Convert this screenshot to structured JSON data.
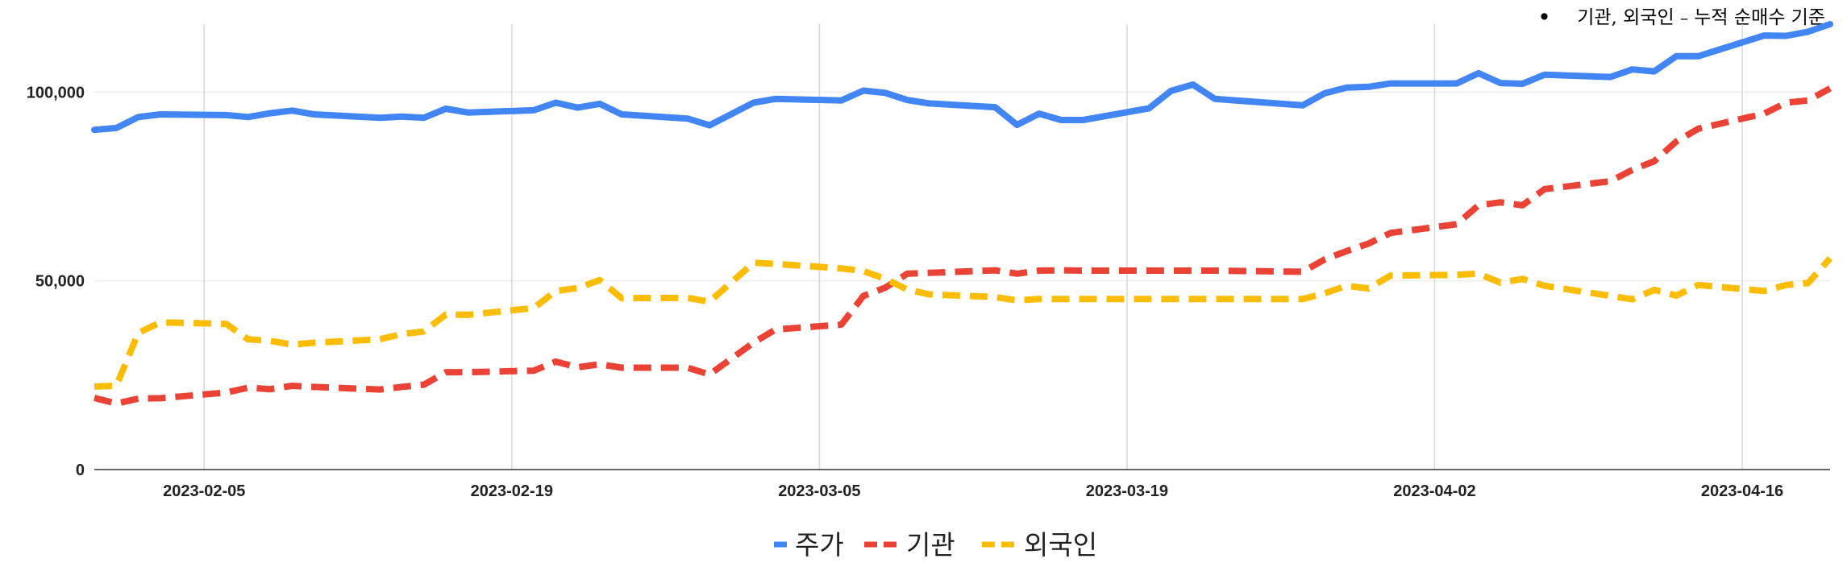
{
  "note": {
    "bullet": "•",
    "main": "기관, 외국인",
    "dash": "–",
    "rest": "누적 순매수 기준"
  },
  "chart_data": {
    "type": "line",
    "x_ticks": [
      "2023-02-05",
      "2023-02-19",
      "2023-03-05",
      "2023-03-19",
      "2023-04-02",
      "2023-04-16"
    ],
    "y_ticks": [
      0,
      50000,
      100000
    ],
    "y_tick_labels": [
      "0",
      "50,000",
      "100,000"
    ],
    "xlim": [
      "2023-01-31",
      "2023-04-20"
    ],
    "ylim": [
      0,
      118000
    ],
    "grid": true,
    "legend_position": "bottom",
    "series": [
      {
        "name": "주가",
        "color": "#4285F4",
        "style": "solid",
        "points": [
          [
            "2023-01-31",
            90000
          ],
          [
            "2023-02-01",
            90500
          ],
          [
            "2023-02-02",
            93400
          ],
          [
            "2023-02-03",
            94100
          ],
          [
            "2023-02-06",
            93900
          ],
          [
            "2023-02-07",
            93400
          ],
          [
            "2023-02-08",
            94400
          ],
          [
            "2023-02-09",
            95100
          ],
          [
            "2023-02-10",
            94100
          ],
          [
            "2023-02-13",
            93200
          ],
          [
            "2023-02-14",
            93500
          ],
          [
            "2023-02-15",
            93200
          ],
          [
            "2023-02-16",
            95600
          ],
          [
            "2023-02-17",
            94600
          ],
          [
            "2023-02-20",
            95200
          ],
          [
            "2023-02-21",
            97200
          ],
          [
            "2023-02-22",
            95900
          ],
          [
            "2023-02-23",
            96900
          ],
          [
            "2023-02-24",
            94100
          ],
          [
            "2023-02-27",
            93000
          ],
          [
            "2023-02-28",
            91200
          ],
          [
            "2023-03-02",
            97200
          ],
          [
            "2023-03-03",
            98200
          ],
          [
            "2023-03-06",
            97800
          ],
          [
            "2023-03-07",
            100400
          ],
          [
            "2023-03-08",
            99800
          ],
          [
            "2023-03-09",
            97900
          ],
          [
            "2023-03-10",
            97000
          ],
          [
            "2023-03-13",
            96000
          ],
          [
            "2023-03-14",
            91300
          ],
          [
            "2023-03-15",
            94300
          ],
          [
            "2023-03-16",
            92600
          ],
          [
            "2023-03-17",
            92600
          ],
          [
            "2023-03-20",
            95700
          ],
          [
            "2023-03-21",
            100300
          ],
          [
            "2023-03-22",
            102000
          ],
          [
            "2023-03-23",
            98200
          ],
          [
            "2023-03-27",
            96500
          ],
          [
            "2023-03-28",
            99700
          ],
          [
            "2023-03-29",
            101200
          ],
          [
            "2023-03-30",
            101400
          ],
          [
            "2023-03-31",
            102300
          ],
          [
            "2023-04-03",
            102300
          ],
          [
            "2023-04-04",
            105000
          ],
          [
            "2023-04-05",
            102400
          ],
          [
            "2023-04-06",
            102200
          ],
          [
            "2023-04-07",
            104600
          ],
          [
            "2023-04-10",
            104000
          ],
          [
            "2023-04-11",
            106000
          ],
          [
            "2023-04-12",
            105500
          ],
          [
            "2023-04-13",
            109500
          ],
          [
            "2023-04-14",
            109500
          ],
          [
            "2023-04-17",
            115000
          ],
          [
            "2023-04-18",
            114900
          ],
          [
            "2023-04-19",
            116000
          ],
          [
            "2023-04-20",
            118000
          ]
        ]
      },
      {
        "name": "기관",
        "color": "#EA4335",
        "style": "dashed",
        "points": [
          [
            "2023-01-31",
            19000
          ],
          [
            "2023-02-01",
            17500
          ],
          [
            "2023-02-02",
            18800
          ],
          [
            "2023-02-03",
            18900
          ],
          [
            "2023-02-06",
            20400
          ],
          [
            "2023-02-07",
            21700
          ],
          [
            "2023-02-08",
            21300
          ],
          [
            "2023-02-09",
            22200
          ],
          [
            "2023-02-10",
            21900
          ],
          [
            "2023-02-13",
            21200
          ],
          [
            "2023-02-14",
            21900
          ],
          [
            "2023-02-15",
            22500
          ],
          [
            "2023-02-16",
            25800
          ],
          [
            "2023-02-17",
            25800
          ],
          [
            "2023-02-20",
            26200
          ],
          [
            "2023-02-21",
            28600
          ],
          [
            "2023-02-22",
            27100
          ],
          [
            "2023-02-23",
            27900
          ],
          [
            "2023-02-24",
            27000
          ],
          [
            "2023-02-27",
            27000
          ],
          [
            "2023-02-28",
            25200
          ],
          [
            "2023-03-02",
            33600
          ],
          [
            "2023-03-03",
            37100
          ],
          [
            "2023-03-06",
            38400
          ],
          [
            "2023-03-07",
            46000
          ],
          [
            "2023-03-08",
            48200
          ],
          [
            "2023-03-09",
            51900
          ],
          [
            "2023-03-10",
            52100
          ],
          [
            "2023-03-13",
            52800
          ],
          [
            "2023-03-14",
            51900
          ],
          [
            "2023-03-15",
            52700
          ],
          [
            "2023-03-16",
            52800
          ],
          [
            "2023-03-17",
            52700
          ],
          [
            "2023-03-20",
            52700
          ],
          [
            "2023-03-21",
            52700
          ],
          [
            "2023-03-22",
            52700
          ],
          [
            "2023-03-23",
            52700
          ],
          [
            "2023-03-27",
            52400
          ],
          [
            "2023-03-28",
            55700
          ],
          [
            "2023-03-29",
            57900
          ],
          [
            "2023-03-30",
            59900
          ],
          [
            "2023-03-31",
            62700
          ],
          [
            "2023-04-03",
            65000
          ],
          [
            "2023-04-04",
            70000
          ],
          [
            "2023-04-05",
            70800
          ],
          [
            "2023-04-06",
            70000
          ],
          [
            "2023-04-07",
            74300
          ],
          [
            "2023-04-10",
            76400
          ],
          [
            "2023-04-11",
            79400
          ],
          [
            "2023-04-12",
            81700
          ],
          [
            "2023-04-13",
            86900
          ],
          [
            "2023-04-14",
            90300
          ],
          [
            "2023-04-17",
            94300
          ],
          [
            "2023-04-18",
            97200
          ],
          [
            "2023-04-19",
            97800
          ],
          [
            "2023-04-20",
            101000
          ]
        ]
      },
      {
        "name": "외국인",
        "color": "#FBBC04",
        "style": "dashed",
        "points": [
          [
            "2023-01-31",
            22000
          ],
          [
            "2023-02-01",
            22200
          ],
          [
            "2023-02-02",
            36200
          ],
          [
            "2023-02-03",
            39000
          ],
          [
            "2023-02-06",
            38600
          ],
          [
            "2023-02-07",
            34500
          ],
          [
            "2023-02-08",
            34100
          ],
          [
            "2023-02-09",
            33100
          ],
          [
            "2023-02-10",
            33600
          ],
          [
            "2023-02-13",
            34500
          ],
          [
            "2023-02-14",
            35900
          ],
          [
            "2023-02-15",
            36600
          ],
          [
            "2023-02-16",
            41100
          ],
          [
            "2023-02-17",
            41000
          ],
          [
            "2023-02-20",
            42800
          ],
          [
            "2023-02-21",
            47300
          ],
          [
            "2023-02-22",
            48100
          ],
          [
            "2023-02-23",
            50200
          ],
          [
            "2023-02-24",
            45400
          ],
          [
            "2023-02-27",
            45500
          ],
          [
            "2023-02-28",
            44500
          ],
          [
            "2023-03-02",
            54800
          ],
          [
            "2023-03-03",
            54500
          ],
          [
            "2023-03-06",
            53300
          ],
          [
            "2023-03-07",
            52600
          ],
          [
            "2023-03-08",
            50500
          ],
          [
            "2023-03-09",
            47700
          ],
          [
            "2023-03-10",
            46400
          ],
          [
            "2023-03-13",
            45700
          ],
          [
            "2023-03-14",
            44800
          ],
          [
            "2023-03-15",
            45200
          ],
          [
            "2023-03-16",
            45200
          ],
          [
            "2023-03-17",
            45200
          ],
          [
            "2023-03-20",
            45200
          ],
          [
            "2023-03-21",
            45200
          ],
          [
            "2023-03-22",
            45200
          ],
          [
            "2023-03-23",
            45200
          ],
          [
            "2023-03-27",
            45200
          ],
          [
            "2023-03-28",
            46700
          ],
          [
            "2023-03-29",
            48700
          ],
          [
            "2023-03-30",
            48000
          ],
          [
            "2023-03-31",
            51400
          ],
          [
            "2023-04-03",
            51600
          ],
          [
            "2023-04-04",
            51900
          ],
          [
            "2023-04-05",
            49500
          ],
          [
            "2023-04-06",
            50500
          ],
          [
            "2023-04-07",
            48700
          ],
          [
            "2023-04-10",
            46000
          ],
          [
            "2023-04-11",
            45100
          ],
          [
            "2023-04-12",
            47600
          ],
          [
            "2023-04-13",
            46100
          ],
          [
            "2023-04-14",
            48900
          ],
          [
            "2023-04-17",
            47300
          ],
          [
            "2023-04-18",
            48900
          ],
          [
            "2023-04-19",
            49400
          ],
          [
            "2023-04-20",
            56000
          ]
        ]
      }
    ]
  }
}
